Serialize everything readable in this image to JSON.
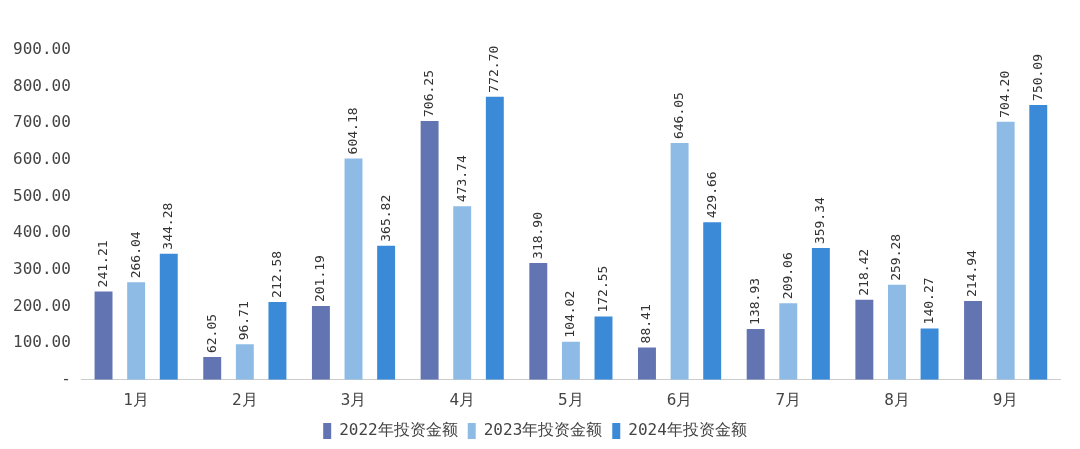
{
  "chart_data": {
    "type": "bar",
    "categories": [
      "1月",
      "2月",
      "3月",
      "4月",
      "5月",
      "6月",
      "7月",
      "8月",
      "9月"
    ],
    "series": [
      {
        "name": "2022年投资金额",
        "color": "#6374b3",
        "values": [
          241.21,
          62.05,
          201.19,
          706.25,
          318.9,
          88.41,
          138.93,
          218.42,
          214.94
        ],
        "value_labels": [
          "241.21",
          "62.05",
          "201.19",
          "706.25",
          "318.90",
          "88.41",
          "138.93",
          "218.42",
          "214.94"
        ]
      },
      {
        "name": "2023年投资金额",
        "color": "#8dbbe6",
        "values": [
          266.04,
          96.71,
          604.18,
          473.74,
          104.02,
          646.05,
          209.06,
          259.28,
          704.2
        ],
        "value_labels": [
          "266.04",
          "96.71",
          "604.18",
          "473.74",
          "104.02",
          "646.05",
          "209.06",
          "259.28",
          "704.20"
        ]
      },
      {
        "name": "2024年投资金额",
        "color": "#3a8ad8",
        "values": [
          344.28,
          212.58,
          365.82,
          772.7,
          172.55,
          429.66,
          359.34,
          140.27,
          750.09
        ],
        "value_labels": [
          "344.28",
          "212.58",
          "365.82",
          "772.70",
          "172.55",
          "429.66",
          "359.34",
          "140.27",
          "750.09"
        ]
      }
    ],
    "ylim": [
      0,
      900
    ],
    "yticks": [
      {
        "value": 0,
        "label": "-"
      },
      {
        "value": 100,
        "label": "100.00"
      },
      {
        "value": 200,
        "label": "200.00"
      },
      {
        "value": 300,
        "label": "300.00"
      },
      {
        "value": 400,
        "label": "400.00"
      },
      {
        "value": 500,
        "label": "500.00"
      },
      {
        "value": 600,
        "label": "600.00"
      },
      {
        "value": 700,
        "label": "700.00"
      },
      {
        "value": 800,
        "label": "800.00"
      },
      {
        "value": 900,
        "label": "900.00"
      }
    ],
    "grid": false,
    "legend": "bottom"
  }
}
